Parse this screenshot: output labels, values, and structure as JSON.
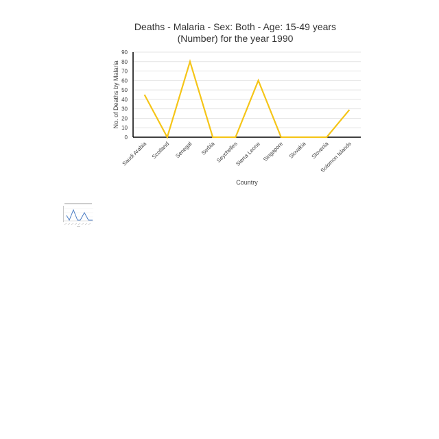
{
  "chart_data": {
    "type": "line",
    "title": "Deaths - Malaria - Sex: Both - Age: 15-49 years (Number) for the year 1990",
    "title_lines": [
      "Deaths - Malaria - Sex: Both - Age: 15-49 years",
      "(Number) for the year 1990"
    ],
    "xlabel": "Country",
    "ylabel": "No. of Deaths by Malaria",
    "categories": [
      "Saudi Arabia",
      "Scotland",
      "Senegal",
      "Serbia",
      "Seychelles",
      "Sierra Leone",
      "Singapore",
      "Slovakia",
      "Slovenia",
      "Solomon Islands"
    ],
    "series": [
      {
        "values": [
          45,
          0,
          80,
          0,
          0,
          60,
          0,
          0,
          0,
          29
        ],
        "color": "#f5c518"
      }
    ],
    "ylim": [
      0,
      90
    ],
    "yticks": [
      0,
      10,
      20,
      30,
      40,
      50,
      60,
      70,
      80,
      90
    ],
    "grid": true,
    "legend": "none"
  },
  "thumbnail": {
    "icon": "chart-thumbnail-icon",
    "color": "#4a7cc4"
  }
}
